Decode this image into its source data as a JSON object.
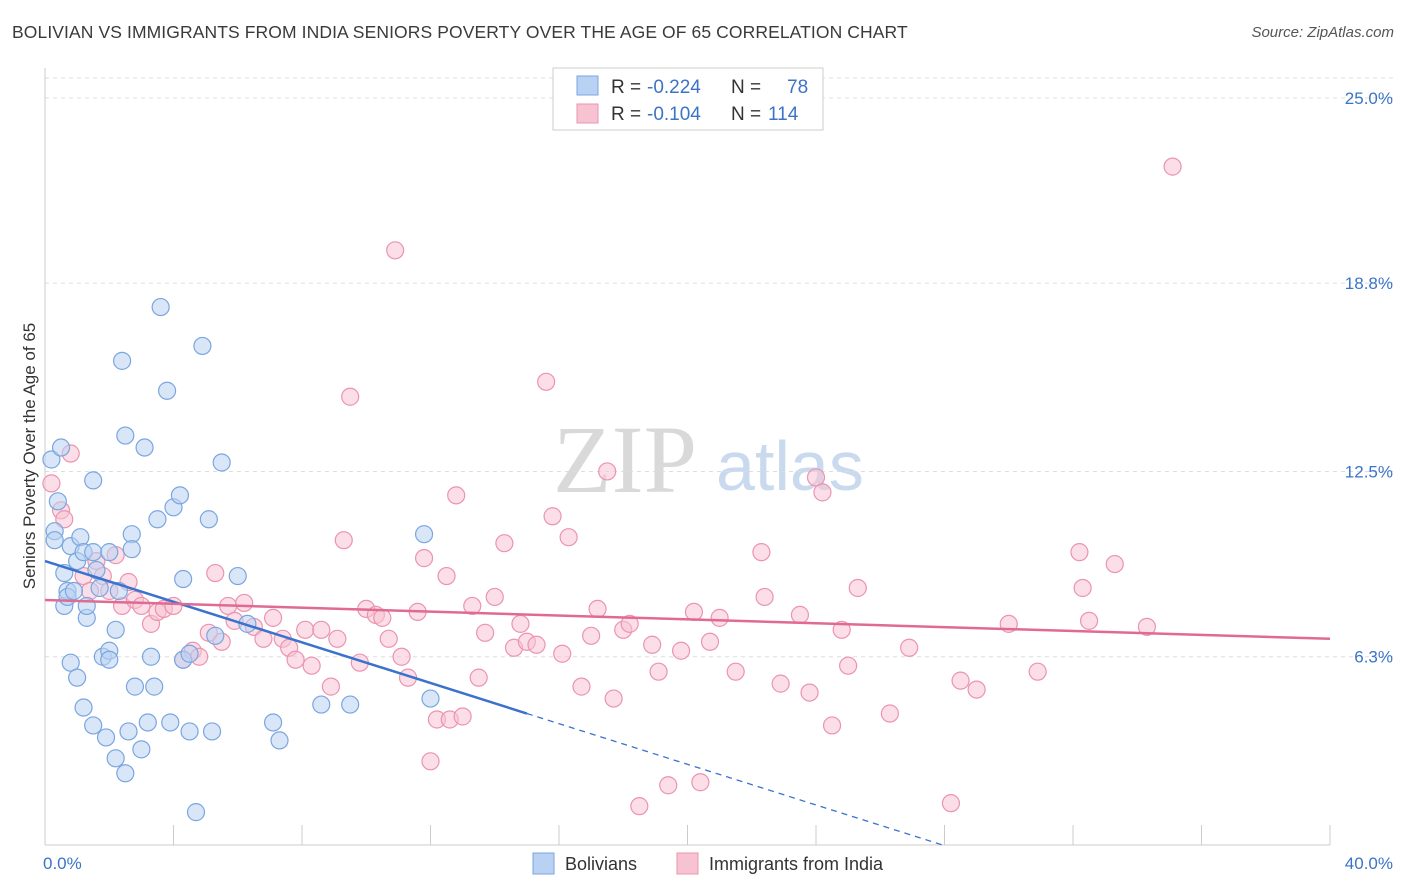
{
  "title": "BOLIVIAN VS IMMIGRANTS FROM INDIA SENIORS POVERTY OVER THE AGE OF 65 CORRELATION CHART",
  "source": "Source: ZipAtlas.com",
  "watermark": {
    "zip": "ZIP",
    "atlas": "atlas"
  },
  "colors": {
    "blue_fill": "#b9d2f3",
    "blue_stroke": "#7aa6e0",
    "blue_line": "#3a72cc",
    "pink_fill": "#f7c3d3",
    "pink_stroke": "#eb94b0",
    "pink_line": "#e06a94",
    "axis_label": "#3b74c7",
    "grid": "#dddddd"
  },
  "legend": {
    "r_label": "R =",
    "n_label": "N =",
    "rows": [
      {
        "r": "-0.224",
        "n": "78"
      },
      {
        "r": "-0.104",
        "n": "114"
      }
    ]
  },
  "bottom_legend": [
    "Bolivians",
    "Immigrants from India"
  ],
  "chart_data": {
    "type": "scatter",
    "title": "BOLIVIAN VS IMMIGRANTS FROM INDIA SENIORS POVERTY OVER THE AGE OF 65 CORRELATION CHART",
    "xlabel": "",
    "ylabel": "Seniors Poverty Over the Age of 65",
    "xlim": [
      0,
      40
    ],
    "ylim": [
      0,
      26
    ],
    "x_tick_labels": [
      "0.0%",
      "40.0%"
    ],
    "y_ticks": [
      6.3,
      12.5,
      18.8,
      25.0
    ],
    "y_tick_labels": [
      "6.3%",
      "12.5%",
      "18.8%",
      "25.0%"
    ],
    "series": [
      {
        "name": "Bolivians",
        "r": -0.224,
        "n": 78,
        "trend": {
          "x0": 0,
          "y0": 9.5,
          "x1": 15.0,
          "y1": 4.4,
          "dash_to_x": 28.0
        },
        "points": [
          [
            0.2,
            12.9
          ],
          [
            0.3,
            10.5
          ],
          [
            0.3,
            10.2
          ],
          [
            0.4,
            11.5
          ],
          [
            0.5,
            13.3
          ],
          [
            0.6,
            9.1
          ],
          [
            0.6,
            8.0
          ],
          [
            0.7,
            8.5
          ],
          [
            0.7,
            8.3
          ],
          [
            0.8,
            10.0
          ],
          [
            0.8,
            6.1
          ],
          [
            0.9,
            8.5
          ],
          [
            1.0,
            5.6
          ],
          [
            1.0,
            9.5
          ],
          [
            1.1,
            10.3
          ],
          [
            1.2,
            9.8
          ],
          [
            1.2,
            4.6
          ],
          [
            1.3,
            7.6
          ],
          [
            1.3,
            8.0
          ],
          [
            1.5,
            9.8
          ],
          [
            1.5,
            4.0
          ],
          [
            1.5,
            12.2
          ],
          [
            1.6,
            9.2
          ],
          [
            1.7,
            8.6
          ],
          [
            1.8,
            6.3
          ],
          [
            1.9,
            3.6
          ],
          [
            2.0,
            6.5
          ],
          [
            2.0,
            9.8
          ],
          [
            2.2,
            7.2
          ],
          [
            2.2,
            2.9
          ],
          [
            2.3,
            8.5
          ],
          [
            2.4,
            16.2
          ],
          [
            2.5,
            13.7
          ],
          [
            2.5,
            2.4
          ],
          [
            2.6,
            3.8
          ],
          [
            2.7,
            10.4
          ],
          [
            2.7,
            9.9
          ],
          [
            2.8,
            5.3
          ],
          [
            3.0,
            3.2
          ],
          [
            3.1,
            13.3
          ],
          [
            3.2,
            4.1
          ],
          [
            3.3,
            6.3
          ],
          [
            3.4,
            5.3
          ],
          [
            3.5,
            10.9
          ],
          [
            3.6,
            18.0
          ],
          [
            3.8,
            15.2
          ],
          [
            3.9,
            4.1
          ],
          [
            4.0,
            11.3
          ],
          [
            4.2,
            11.7
          ],
          [
            4.3,
            8.9
          ],
          [
            4.3,
            6.2
          ],
          [
            4.5,
            3.8
          ],
          [
            4.5,
            6.4
          ],
          [
            4.7,
            1.1
          ],
          [
            4.9,
            16.7
          ],
          [
            5.1,
            10.9
          ],
          [
            5.2,
            3.8
          ],
          [
            5.3,
            7.0
          ],
          [
            5.5,
            12.8
          ],
          [
            6.0,
            9.0
          ],
          [
            6.3,
            7.4
          ],
          [
            7.1,
            4.1
          ],
          [
            7.3,
            3.5
          ],
          [
            8.6,
            4.7
          ],
          [
            9.5,
            4.7
          ],
          [
            11.8,
            10.4
          ],
          [
            12.0,
            4.9
          ],
          [
            2.0,
            6.2
          ]
        ]
      },
      {
        "name": "Immigrants from India",
        "r": -0.104,
        "n": 114,
        "trend": {
          "x0": 0,
          "y0": 8.2,
          "x1": 40.0,
          "y1": 6.9
        },
        "points": [
          [
            0.2,
            12.1
          ],
          [
            0.5,
            11.2
          ],
          [
            0.6,
            10.9
          ],
          [
            0.8,
            13.1
          ],
          [
            1.2,
            9.0
          ],
          [
            1.4,
            8.5
          ],
          [
            1.6,
            9.5
          ],
          [
            1.8,
            9.0
          ],
          [
            2.0,
            8.5
          ],
          [
            2.2,
            9.7
          ],
          [
            2.4,
            8.0
          ],
          [
            2.6,
            8.8
          ],
          [
            2.8,
            8.2
          ],
          [
            3.0,
            8.0
          ],
          [
            3.3,
            7.4
          ],
          [
            3.5,
            7.8
          ],
          [
            3.7,
            7.9
          ],
          [
            4.0,
            8.0
          ],
          [
            4.3,
            6.2
          ],
          [
            4.6,
            6.5
          ],
          [
            4.8,
            6.3
          ],
          [
            5.1,
            7.1
          ],
          [
            5.3,
            9.1
          ],
          [
            5.5,
            6.8
          ],
          [
            5.7,
            8.0
          ],
          [
            5.9,
            7.5
          ],
          [
            6.2,
            8.1
          ],
          [
            6.5,
            7.3
          ],
          [
            6.8,
            6.9
          ],
          [
            7.1,
            7.6
          ],
          [
            7.4,
            6.9
          ],
          [
            7.6,
            6.6
          ],
          [
            7.8,
            6.2
          ],
          [
            8.1,
            7.2
          ],
          [
            8.3,
            6.0
          ],
          [
            8.6,
            7.2
          ],
          [
            8.9,
            5.3
          ],
          [
            9.1,
            6.9
          ],
          [
            9.3,
            10.2
          ],
          [
            9.5,
            15.0
          ],
          [
            9.8,
            6.1
          ],
          [
            10.0,
            7.9
          ],
          [
            10.3,
            7.7
          ],
          [
            10.5,
            7.6
          ],
          [
            10.7,
            6.9
          ],
          [
            10.9,
            19.9
          ],
          [
            11.1,
            6.3
          ],
          [
            11.3,
            5.6
          ],
          [
            11.6,
            7.8
          ],
          [
            11.8,
            9.6
          ],
          [
            12.0,
            2.8
          ],
          [
            12.2,
            4.2
          ],
          [
            12.5,
            9.0
          ],
          [
            12.6,
            4.2
          ],
          [
            12.8,
            11.7
          ],
          [
            13.0,
            4.3
          ],
          [
            13.3,
            8.0
          ],
          [
            13.5,
            5.6
          ],
          [
            13.7,
            7.1
          ],
          [
            14.0,
            8.3
          ],
          [
            14.3,
            10.1
          ],
          [
            14.6,
            6.6
          ],
          [
            14.8,
            7.4
          ],
          [
            15.0,
            6.8
          ],
          [
            15.3,
            6.7
          ],
          [
            15.6,
            15.5
          ],
          [
            15.8,
            11.0
          ],
          [
            16.1,
            6.4
          ],
          [
            16.3,
            10.3
          ],
          [
            16.7,
            5.3
          ],
          [
            17.0,
            7.0
          ],
          [
            17.2,
            7.9
          ],
          [
            17.5,
            12.5
          ],
          [
            17.7,
            4.9
          ],
          [
            18.0,
            7.2
          ],
          [
            18.2,
            7.4
          ],
          [
            18.5,
            1.3
          ],
          [
            18.9,
            6.7
          ],
          [
            19.1,
            5.8
          ],
          [
            19.4,
            2.0
          ],
          [
            19.8,
            6.5
          ],
          [
            20.2,
            7.8
          ],
          [
            20.4,
            2.1
          ],
          [
            20.7,
            6.8
          ],
          [
            21.0,
            7.6
          ],
          [
            21.5,
            5.8
          ],
          [
            22.3,
            9.8
          ],
          [
            22.4,
            8.3
          ],
          [
            22.9,
            5.4
          ],
          [
            23.5,
            7.7
          ],
          [
            23.8,
            5.1
          ],
          [
            24.0,
            12.3
          ],
          [
            24.2,
            11.8
          ],
          [
            24.5,
            4.0
          ],
          [
            24.8,
            7.2
          ],
          [
            25.0,
            6.0
          ],
          [
            25.3,
            8.6
          ],
          [
            26.3,
            4.4
          ],
          [
            26.9,
            6.6
          ],
          [
            28.2,
            1.4
          ],
          [
            28.5,
            5.5
          ],
          [
            29.0,
            5.2
          ],
          [
            30.0,
            7.4
          ],
          [
            30.9,
            5.8
          ],
          [
            32.2,
            9.8
          ],
          [
            32.3,
            8.6
          ],
          [
            32.5,
            7.5
          ],
          [
            33.3,
            9.4
          ],
          [
            34.3,
            7.3
          ],
          [
            35.1,
            22.7
          ]
        ]
      }
    ]
  }
}
